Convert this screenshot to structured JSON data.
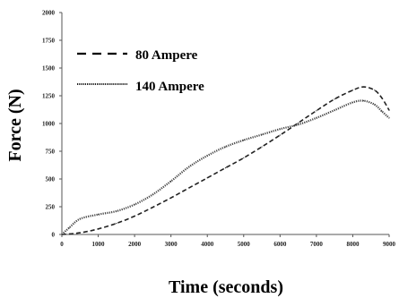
{
  "chart_data": {
    "type": "line",
    "title": "",
    "xlabel": "Time (seconds)",
    "ylabel": "Force (N)",
    "xlim": [
      0,
      9000
    ],
    "ylim": [
      0,
      2000
    ],
    "x_ticks": [
      "0",
      "1000",
      "2000",
      "3000",
      "4000",
      "5000",
      "6000",
      "7000",
      "8000",
      "9000"
    ],
    "y_ticks": [
      "0",
      "250",
      "500",
      "750",
      "1000",
      "1250",
      "1500",
      "1750",
      "2000"
    ],
    "grid": false,
    "legend_position": "top-left",
    "series": [
      {
        "name": "80 Ampere",
        "style": "dashed",
        "color": "#222222",
        "x": [
          0,
          500,
          1000,
          1500,
          2000,
          2500,
          3000,
          3500,
          4000,
          4500,
          5000,
          5500,
          6000,
          6500,
          7000,
          7500,
          8000,
          8300,
          8600,
          8800,
          9000
        ],
        "y": [
          0,
          15,
          50,
          100,
          165,
          245,
          330,
          420,
          510,
          600,
          690,
          790,
          895,
          1005,
          1115,
          1220,
          1300,
          1330,
          1300,
          1230,
          1120
        ]
      },
      {
        "name": "140 Ampere",
        "style": "dotted",
        "color": "#444444",
        "x": [
          0,
          200,
          500,
          1000,
          1500,
          2000,
          2500,
          3000,
          3500,
          4000,
          4500,
          5000,
          5500,
          6000,
          6500,
          7000,
          7500,
          8000,
          8300,
          8600,
          8800,
          9000
        ],
        "y": [
          0,
          60,
          140,
          180,
          210,
          270,
          360,
          480,
          610,
          710,
          790,
          850,
          900,
          950,
          990,
          1050,
          1120,
          1190,
          1205,
          1170,
          1110,
          1050
        ]
      }
    ]
  }
}
